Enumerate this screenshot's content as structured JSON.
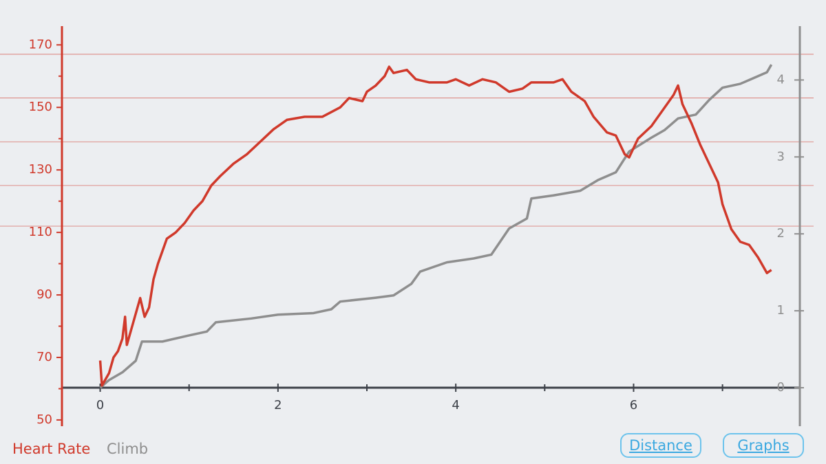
{
  "chart_data": {
    "type": "line",
    "legend": [
      "Heart Rate",
      "Climb"
    ],
    "xlim": [
      -0.43,
      7.87
    ],
    "xticks": [
      0,
      2,
      4,
      6
    ],
    "xminor_ticks": [
      1,
      3,
      5,
      7
    ],
    "ylim": [
      48,
      176
    ],
    "yticks": [
      50,
      70,
      90,
      110,
      130,
      150,
      170
    ],
    "yminor_ticks": [
      60,
      80,
      100,
      120,
      140,
      160
    ],
    "y2lim": [
      -0.5,
      4.7
    ],
    "y2ticks": [
      0,
      1,
      2,
      3,
      4
    ],
    "zones": [
      112,
      125,
      139,
      153,
      167
    ],
    "series": [
      {
        "name": "Heart Rate",
        "color": "#d0392b",
        "x": [
          0,
          0.02,
          0.1,
          0.15,
          0.2,
          0.25,
          0.28,
          0.3,
          0.35,
          0.4,
          0.45,
          0.5,
          0.55,
          0.6,
          0.65,
          0.7,
          0.75,
          0.85,
          0.95,
          1.05,
          1.15,
          1.25,
          1.35,
          1.5,
          1.65,
          1.8,
          1.95,
          2.1,
          2.3,
          2.5,
          2.7,
          2.8,
          2.95,
          3.0,
          3.1,
          3.2,
          3.25,
          3.3,
          3.45,
          3.55,
          3.7,
          3.9,
          4.0,
          4.15,
          4.3,
          4.45,
          4.6,
          4.75,
          4.85,
          5.0,
          5.1,
          5.2,
          5.3,
          5.45,
          5.55,
          5.7,
          5.8,
          5.9,
          5.95,
          6.05,
          6.2,
          6.35,
          6.45,
          6.5,
          6.55,
          6.65,
          6.75,
          6.85,
          6.95,
          7.0,
          7.1,
          7.2,
          7.3,
          7.4,
          7.5,
          7.55
        ],
        "values": [
          69,
          61,
          65,
          70,
          72,
          76,
          83,
          74,
          79,
          84,
          89,
          83,
          86,
          95,
          100,
          104,
          108,
          110,
          113,
          117,
          120,
          125,
          128,
          132,
          135,
          139,
          143,
          146,
          147,
          147,
          150,
          153,
          152,
          155,
          157,
          160,
          163,
          161,
          162,
          159,
          158,
          158,
          159,
          157,
          159,
          158,
          155,
          156,
          158,
          158,
          158,
          159,
          155,
          152,
          147,
          142,
          141,
          135,
          134,
          140,
          144,
          150,
          154,
          157,
          151,
          145,
          138,
          132,
          126,
          119,
          111,
          107,
          106,
          102,
          97,
          98
        ]
      },
      {
        "name": "Climb",
        "color": "#8e8e8e",
        "axis": "y2",
        "x": [
          0,
          0.1,
          0.25,
          0.4,
          0.47,
          0.7,
          1.0,
          1.2,
          1.3,
          1.7,
          2.0,
          2.4,
          2.6,
          2.7,
          3.1,
          3.3,
          3.5,
          3.6,
          3.9,
          4.2,
          4.4,
          4.5,
          4.6,
          4.8,
          4.85,
          5.1,
          5.4,
          5.6,
          5.8,
          5.95,
          6.2,
          6.35,
          6.5,
          6.7,
          6.85,
          7.0,
          7.2,
          7.3,
          7.5,
          7.55
        ],
        "values": [
          0,
          0.1,
          0.2,
          0.35,
          0.6,
          0.6,
          0.68,
          0.73,
          0.85,
          0.9,
          0.95,
          0.97,
          1.02,
          1.12,
          1.17,
          1.2,
          1.35,
          1.51,
          1.63,
          1.68,
          1.73,
          1.9,
          2.07,
          2.2,
          2.46,
          2.5,
          2.56,
          2.7,
          2.8,
          3.07,
          3.25,
          3.35,
          3.5,
          3.55,
          3.74,
          3.9,
          3.95,
          4.0,
          4.1,
          4.2
        ]
      }
    ]
  },
  "buttons": [
    "Distance",
    "Graphs"
  ]
}
